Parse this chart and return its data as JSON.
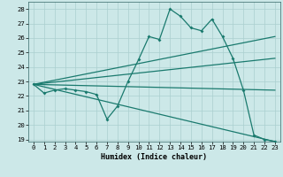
{
  "title": "",
  "xlabel": "Humidex (Indice chaleur)",
  "bg_color": "#cce8e8",
  "line_color": "#1a7a6e",
  "grid_color": "#aacfcf",
  "x_data": [
    0,
    1,
    2,
    3,
    4,
    5,
    6,
    7,
    8,
    9,
    10,
    11,
    12,
    13,
    14,
    15,
    16,
    17,
    18,
    19,
    20,
    21,
    22,
    23
  ],
  "y_main": [
    22.8,
    22.2,
    22.4,
    22.5,
    22.4,
    22.3,
    22.1,
    20.4,
    21.3,
    23.0,
    24.5,
    26.1,
    25.9,
    28.0,
    27.5,
    26.7,
    26.5,
    27.3,
    26.1,
    24.6,
    22.4,
    19.3,
    19.0,
    18.85
  ],
  "ylim": [
    18.85,
    28.5
  ],
  "xlim": [
    -0.5,
    23.5
  ],
  "yticks": [
    19,
    20,
    21,
    22,
    23,
    24,
    25,
    26,
    27,
    28
  ],
  "xticks": [
    0,
    1,
    2,
    3,
    4,
    5,
    6,
    7,
    8,
    9,
    10,
    11,
    12,
    13,
    14,
    15,
    16,
    17,
    18,
    19,
    20,
    21,
    22,
    23
  ],
  "trend_lines": [
    {
      "x0": 0,
      "y0": 22.8,
      "x1": 23,
      "y1": 18.85
    },
    {
      "x0": 0,
      "y0": 22.8,
      "x1": 23,
      "y1": 26.1
    },
    {
      "x0": 0,
      "y0": 22.8,
      "x1": 23,
      "y1": 24.6
    },
    {
      "x0": 0,
      "y0": 22.8,
      "x1": 23,
      "y1": 22.4
    }
  ]
}
